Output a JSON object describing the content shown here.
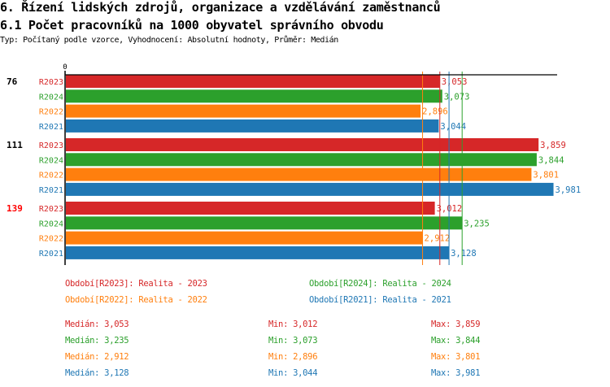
{
  "header": {
    "title": "6. Řízení lidských zdrojů, organizace a vzdělávání zaměstnanců",
    "subtitle": "6.1 Počet pracovníků na 1000 obyvatel správního obvodu",
    "info": "Typ: Počítaný podle vzorce, Vyhodnocení: Absolutní hodnoty, Průměr: Medián"
  },
  "chart_data": {
    "type": "bar",
    "orientation": "horizontal",
    "x_tick_labels": [
      "0"
    ],
    "xlim": [
      0,
      4.0
    ],
    "series_colors": {
      "R2023": "#d62728",
      "R2024": "#2ca02c",
      "R2022": "#ff7f0e",
      "R2021": "#1f77b4"
    },
    "groups": [
      {
        "label": "76",
        "label_color": "#000000",
        "bars": [
          {
            "series": "R2023",
            "value": 3.053,
            "label": "3,053"
          },
          {
            "series": "R2024",
            "value": 3.073,
            "label": "3,073"
          },
          {
            "series": "R2022",
            "value": 2.896,
            "label": "2,896"
          },
          {
            "series": "R2021",
            "value": 3.044,
            "label": "3,044"
          }
        ]
      },
      {
        "label": "111",
        "label_color": "#000000",
        "bars": [
          {
            "series": "R2023",
            "value": 3.859,
            "label": "3,859"
          },
          {
            "series": "R2024",
            "value": 3.844,
            "label": "3,844"
          },
          {
            "series": "R2022",
            "value": 3.801,
            "label": "3,801"
          },
          {
            "series": "R2021",
            "value": 3.981,
            "label": "3,981"
          }
        ]
      },
      {
        "label": "139",
        "label_color": "#ff0000",
        "bars": [
          {
            "series": "R2023",
            "value": 3.012,
            "label": "3,012"
          },
          {
            "series": "R2024",
            "value": 3.235,
            "label": "3,235"
          },
          {
            "series": "R2022",
            "value": 2.912,
            "label": "2,912"
          },
          {
            "series": "R2021",
            "value": 3.128,
            "label": "3,128"
          }
        ]
      }
    ],
    "median_lines": [
      {
        "series": "R2022",
        "value": 2.912
      },
      {
        "series": "R2023",
        "value": 3.053
      },
      {
        "series": "R2021",
        "value": 3.128
      },
      {
        "series": "R2024",
        "value": 3.235
      }
    ],
    "legend": [
      {
        "series": "R2023",
        "text": "Období[R2023]: Realita - 2023"
      },
      {
        "series": "R2024",
        "text": "Období[R2024]: Realita - 2024"
      },
      {
        "series": "R2022",
        "text": "Období[R2022]: Realita - 2022"
      },
      {
        "series": "R2021",
        "text": "Období[R2021]: Realita - 2021"
      }
    ],
    "stats": [
      {
        "series": "R2023",
        "median": "Medián: 3,053",
        "min": "Min: 3,012",
        "max": "Max: 3,859"
      },
      {
        "series": "R2024",
        "median": "Medián: 3,235",
        "min": "Min: 3,073",
        "max": "Max: 3,844"
      },
      {
        "series": "R2022",
        "median": "Medián: 2,912",
        "min": "Min: 2,896",
        "max": "Max: 3,801"
      },
      {
        "series": "R2021",
        "median": "Medián: 3,128",
        "min": "Min: 3,044",
        "max": "Max: 3,981"
      }
    ]
  }
}
